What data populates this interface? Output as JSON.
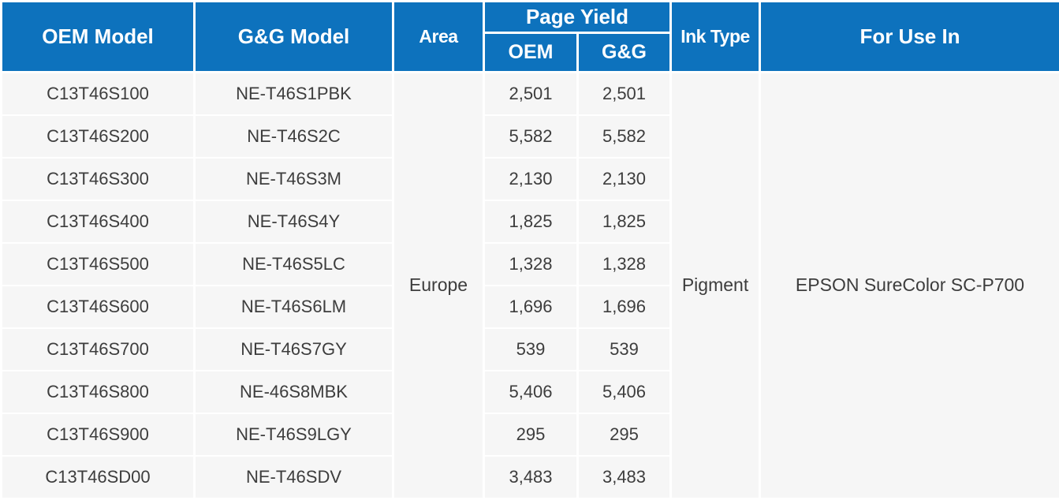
{
  "table": {
    "header": {
      "oem_model": "OEM Model",
      "gg_model": "G&G Model",
      "area": "Area",
      "page_yield": "Page Yield",
      "page_yield_oem": "OEM",
      "page_yield_gg": "G&G",
      "ink_type": "Ink Type",
      "for_use_in": "For Use In"
    },
    "merged": {
      "area": "Europe",
      "ink_type": "Pigment",
      "for_use_in": "EPSON SureColor SC-P700"
    },
    "rows": [
      {
        "oem_model": "C13T46S100",
        "gg_model": "NE-T46S1PBK",
        "oem_yield": "2,501",
        "gg_yield": "2,501"
      },
      {
        "oem_model": "C13T46S200",
        "gg_model": "NE-T46S2C",
        "oem_yield": "5,582",
        "gg_yield": "5,582"
      },
      {
        "oem_model": "C13T46S300",
        "gg_model": "NE-T46S3M",
        "oem_yield": "2,130",
        "gg_yield": "2,130"
      },
      {
        "oem_model": "C13T46S400",
        "gg_model": "NE-T46S4Y",
        "oem_yield": "1,825",
        "gg_yield": "1,825"
      },
      {
        "oem_model": "C13T46S500",
        "gg_model": "NE-T46S5LC",
        "oem_yield": "1,328",
        "gg_yield": "1,328"
      },
      {
        "oem_model": "C13T46S600",
        "gg_model": "NE-T46S6LM",
        "oem_yield": "1,696",
        "gg_yield": "1,696"
      },
      {
        "oem_model": "C13T46S700",
        "gg_model": "NE-T46S7GY",
        "oem_yield": "539",
        "gg_yield": "539"
      },
      {
        "oem_model": "C13T46S800",
        "gg_model": "NE-46S8MBK",
        "oem_yield": "5,406",
        "gg_yield": "5,406"
      },
      {
        "oem_model": "C13T46S900",
        "gg_model": "NE-T46S9LGY",
        "oem_yield": "295",
        "gg_yield": "295"
      },
      {
        "oem_model": "C13T46SD00",
        "gg_model": "NE-T46SDV",
        "oem_yield": "3,483",
        "gg_yield": "3,483"
      }
    ]
  },
  "colors": {
    "header_bg": "#0d72bd",
    "header_text": "#ffffff",
    "row_bg": "#f6f6f6",
    "body_text": "#3d3d3d",
    "separator": "#ffffff",
    "outer_border": "#1f4e79"
  }
}
